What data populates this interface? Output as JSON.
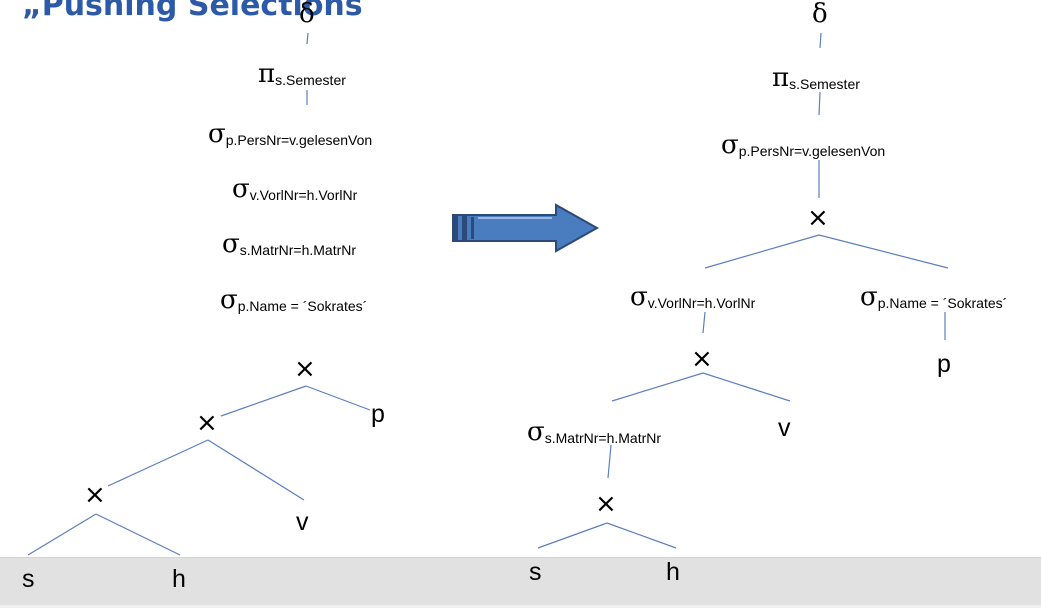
{
  "slide": {
    "title": "„Pushing Selections"
  },
  "colors": {
    "title": "#2d5aa8",
    "edge": "#5b7fbf",
    "arrow": "#4a7cc0",
    "arrow_outline": "#2c4a78",
    "footer_bar": "#e1e1e1"
  },
  "symbols": {
    "delta": "δ",
    "pi": "π",
    "sigma": "σ",
    "cross": "×"
  },
  "left_tree": {
    "delta": "δ",
    "projection": "s.Semester",
    "sel_pers": "p.PersNr=v.gelesenVon",
    "sel_vorl": "v.VorlNr=h.VorlNr",
    "sel_matr": "s.MatrNr=h.MatrNr",
    "sel_name": "p.Name = ´Sokrates´",
    "leaf_p": "p",
    "leaf_v": "v",
    "leaf_s": "s",
    "leaf_h": "h"
  },
  "right_tree": {
    "delta": "δ",
    "projection": "s.Semester",
    "sel_pers": "p.PersNr=v.gelesenVon",
    "sel_vorl": "v.VorlNr=h.VorlNr",
    "sel_name": "p.Name = ´Sokrates´",
    "sel_matr": "s.MatrNr=h.MatrNr",
    "leaf_p": "p",
    "leaf_v": "v",
    "leaf_s": "s",
    "leaf_h": "h"
  },
  "arrow": {
    "icon": "right-arrow-icon"
  }
}
